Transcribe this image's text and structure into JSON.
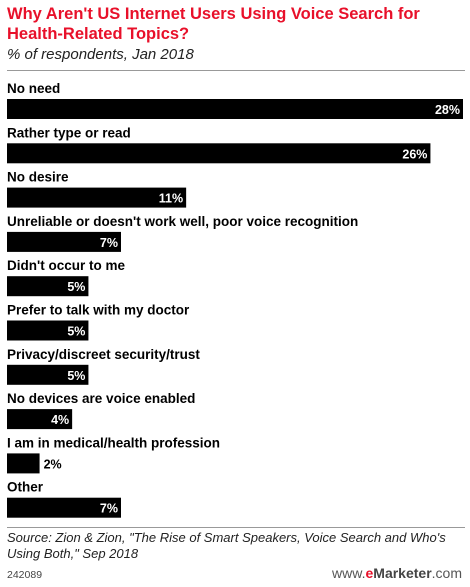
{
  "title": "Why Aren't US Internet Users Using Voice Search for Health-Related Topics?",
  "subtitle": "% of respondents, Jan 2018",
  "source": "Source: Zion & Zion, \"The Rise of Smart Speakers, Voice Search and Who's Using Both,\" Sep 2018",
  "footer_id": "242089",
  "brand": {
    "prefix": "www.",
    "e": "e",
    "name": "Marketer",
    "suffix": ".com"
  },
  "colors": {
    "title": "#e8102a",
    "bar": "#000000",
    "label_inside": "#ffffff",
    "label_outside": "#000000"
  },
  "chart_data": {
    "type": "bar",
    "orientation": "horizontal",
    "categories": [
      "No need",
      "Rather type or read",
      "No desire",
      "Unreliable or doesn't work well, poor voice recognition",
      "Didn't occur to me",
      "Prefer to talk with my doctor",
      "Privacy/discreet security/trust",
      "No devices are voice enabled",
      "I am in medical/health profession",
      "Other"
    ],
    "values": [
      28,
      26,
      11,
      7,
      5,
      5,
      5,
      4,
      2,
      7
    ],
    "value_labels": [
      "28%",
      "26%",
      "11%",
      "7%",
      "5%",
      "5%",
      "5%",
      "4%",
      "2%",
      "7%"
    ],
    "title": "Why Aren't US Internet Users Using Voice Search for Health-Related Topics?",
    "xlim": [
      0,
      28
    ],
    "grid": false,
    "legend": "none"
  }
}
